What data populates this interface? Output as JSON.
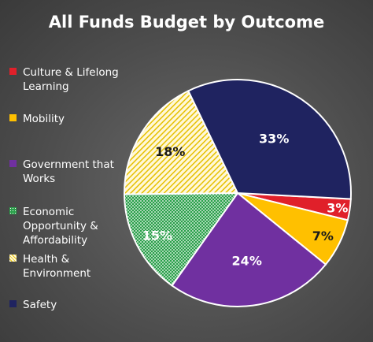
{
  "chart_data": {
    "type": "pie",
    "title": "All Funds Budget by Outcome",
    "legend_position": "left",
    "slices": [
      {
        "name": "Culture & Lifelong Learning",
        "value": 3,
        "label": "3%",
        "color": "#e0202a",
        "pattern": "solid",
        "label_color": "#ffffff"
      },
      {
        "name": "Mobility",
        "value": 7,
        "label": "7%",
        "color": "#ffc000",
        "pattern": "solid",
        "label_color": "#1a1a1a"
      },
      {
        "name": "Government that Works",
        "value": 24,
        "label": "24%",
        "color": "#7030a0",
        "pattern": "solid",
        "label_color": "#ffffff"
      },
      {
        "name": "Economic Opportunity & Affordability",
        "value": 15,
        "label": "15%",
        "color": "#2aa04a",
        "pattern": "dots",
        "label_color": "#ffffff"
      },
      {
        "name": "Health & Environment",
        "value": 18,
        "label": "18%",
        "color": "#fff8d8",
        "pattern": "stripes",
        "label_color": "#1a1a1a"
      },
      {
        "name": "Safety",
        "value": 33,
        "label": "33%",
        "color": "#1f2360",
        "pattern": "solid",
        "label_color": "#ffffff"
      }
    ]
  }
}
